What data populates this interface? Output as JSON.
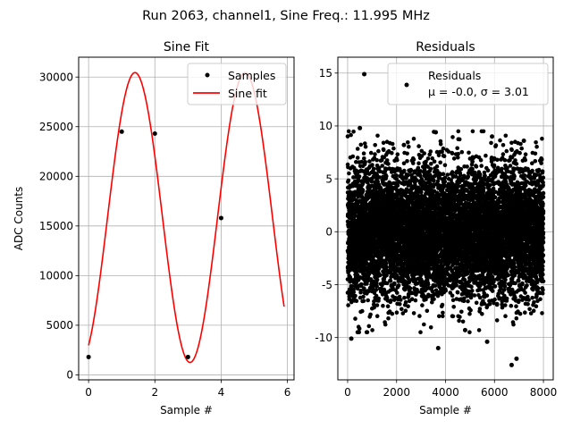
{
  "figure": {
    "suptitle": "Run 2063, channel1, Sine Freq.: 11.995 MHz"
  },
  "chart_data": [
    {
      "type": "line",
      "title": "Sine Fit",
      "xlabel": "Sample #",
      "ylabel": "ADC Counts",
      "xlim": [
        -0.3,
        6.2
      ],
      "ylim": [
        -500,
        32000
      ],
      "xticks": [
        0,
        2,
        4,
        6
      ],
      "yticks": [
        0,
        5000,
        10000,
        15000,
        20000,
        25000,
        30000
      ],
      "grid": true,
      "legend_position": "top-right",
      "legend": [
        "Samples",
        "Sine fit"
      ],
      "colors": {
        "samples": "#000000",
        "fit": "#ff0000"
      },
      "series": [
        {
          "name": "Samples",
          "kind": "scatter",
          "x": [
            0,
            1,
            2,
            3,
            4
          ],
          "y": [
            1800,
            24500,
            24300,
            1800,
            15800
          ]
        },
        {
          "name": "Sine fit",
          "kind": "line",
          "model": {
            "offset": 15850,
            "amplitude": 14600,
            "period_samples": 3.32,
            "phase_rad": -1.08
          },
          "x_range": [
            0,
            5.9
          ]
        }
      ]
    },
    {
      "type": "scatter",
      "title": "Residuals",
      "xlabel": "Sample #",
      "xlim": [
        -400,
        8400
      ],
      "ylim": [
        -14,
        16.5
      ],
      "xticks": [
        0,
        2000,
        4000,
        6000,
        8000
      ],
      "yticks": [
        -10,
        -5,
        0,
        5,
        10,
        15
      ],
      "grid": true,
      "legend_position": "top-right",
      "legend": [
        "Residuals",
        "μ = -0.0, σ = 3.01"
      ],
      "colors": {
        "points": "#000000"
      },
      "series": [
        {
          "name": "Residuals",
          "stats": {
            "mean": -0.0,
            "std": 3.01,
            "count": 8000,
            "x_range": [
              0,
              8000
            ]
          },
          "outliers": [
            {
              "x": 680,
              "y": 14.9
            },
            {
              "x": 500,
              "y": 9.8
            },
            {
              "x": 150,
              "y": -10.1
            },
            {
              "x": 3700,
              "y": -11.0
            },
            {
              "x": 6700,
              "y": -12.6
            },
            {
              "x": 6900,
              "y": -12.0
            },
            {
              "x": 4800,
              "y": -9.3
            },
            {
              "x": 5700,
              "y": -10.4
            },
            {
              "x": 3600,
              "y": 9.4
            },
            {
              "x": 5900,
              "y": 9.0
            },
            {
              "x": 7200,
              "y": 8.6
            },
            {
              "x": 2300,
              "y": 8.2
            }
          ]
        }
      ]
    }
  ]
}
